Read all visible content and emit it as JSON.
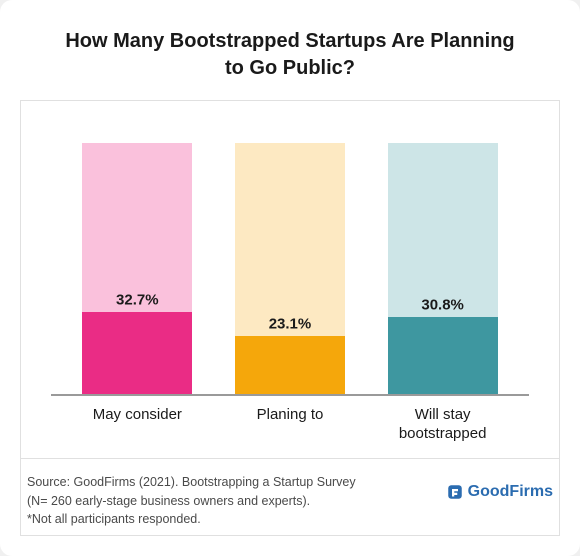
{
  "title": "How Many Bootstrapped Startups Are Planning to Go Public?",
  "chart": {
    "type": "bar",
    "background_color": "#ffffff",
    "border_color": "#e0e0e0",
    "axis_color": "#9a9a9a",
    "bar_total_height_pct": 92,
    "value_scale_max": 100,
    "label_fontsize": 15,
    "label_fontweight": 700,
    "category_fontsize": 15,
    "bars": [
      {
        "category": "May consider",
        "value": 32.7,
        "label": "32.7%",
        "light_color": "#fac1dc",
        "dark_color": "#ea2c85"
      },
      {
        "category": "Planing to",
        "value": 23.1,
        "label": "23.1%",
        "light_color": "#fde9c2",
        "dark_color": "#f5a70b"
      },
      {
        "category": "Will stay bootstrapped",
        "value": 30.8,
        "label": "30.8%",
        "light_color": "#cde5e7",
        "dark_color": "#3e97a0"
      }
    ]
  },
  "footer": {
    "source_line1": "Source: GoodFirms (2021). Bootstrapping a Startup Survey",
    "source_line2": "(N= 260 early-stage business owners and experts).",
    "source_line3": "*Not all participants responded.",
    "logo_text": "GoodFirms",
    "logo_color": "#2b6cb0"
  }
}
